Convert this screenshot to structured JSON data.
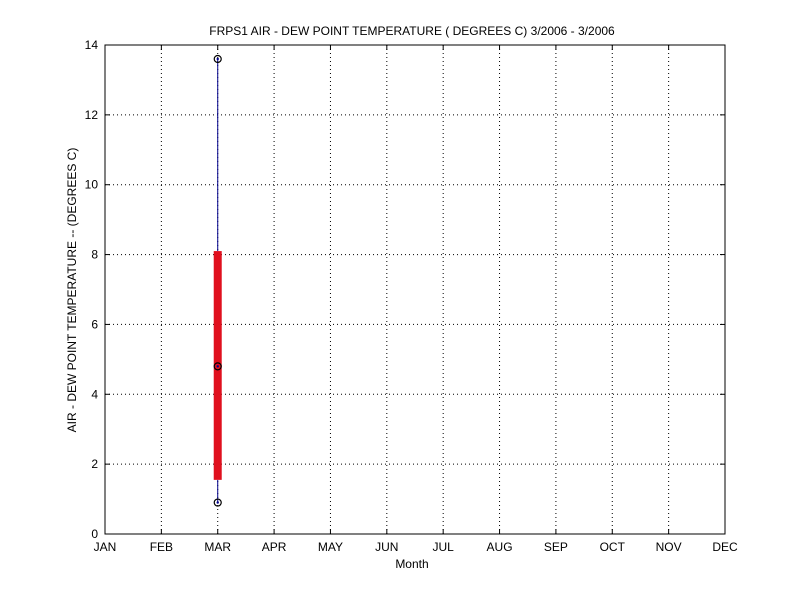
{
  "chart_data": {
    "type": "box",
    "title": "FRPS1  AIR - DEW POINT TEMPERATURE ( DEGREES C) 3/2006 - 3/2006",
    "xlabel": "Month",
    "ylabel": "AIR - DEW POINT TEMPERATURE -- (DEGREES C)",
    "categories": [
      "JAN",
      "FEB",
      "MAR",
      "APR",
      "MAY",
      "JUN",
      "JUL",
      "AUG",
      "SEP",
      "OCT",
      "NOV",
      "DEC"
    ],
    "ylim": [
      0,
      14
    ],
    "yticks": [
      0,
      2,
      4,
      6,
      8,
      10,
      12,
      14
    ],
    "grid": true,
    "legend": "none",
    "boxes": [
      {
        "category": "MAR",
        "min": 0.9,
        "q1": 1.55,
        "median": 4.8,
        "q3": 8.1,
        "max": 13.6
      }
    ],
    "colors": {
      "box": "#e0101e",
      "whisker": "#00008b",
      "marker": "#000000"
    }
  }
}
